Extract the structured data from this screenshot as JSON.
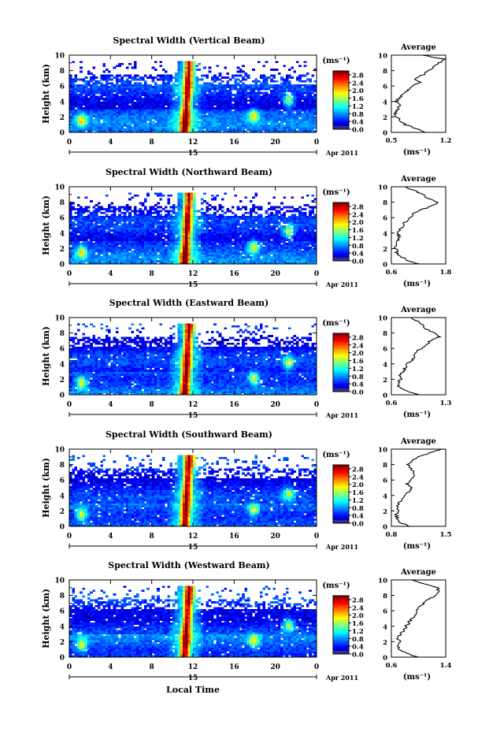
{
  "figure": {
    "xlabel": "Local Time",
    "day_label": "15",
    "month_label": "Apr 2011",
    "colorbar_unit": "(ms⁻¹)",
    "avg_title": "Average",
    "avg_xlabel": "(ms⁻¹)"
  },
  "chart_data": [
    {
      "type": "heatmap",
      "title": "Spectral Width (Vertical Beam)",
      "ylabel": "Height (km)",
      "x_ticks": [
        "0",
        "4",
        "8",
        "12",
        "16",
        "20",
        "0"
      ],
      "y_ticks": [
        "0",
        "2",
        "4",
        "6",
        "8",
        "10"
      ],
      "xlim": [
        0,
        24
      ],
      "ylim": [
        0,
        10
      ],
      "colorbar_ticks": [
        "0.0",
        "0.4",
        "0.8",
        "1.2",
        "1.6",
        "2.0",
        "2.4",
        "2.8"
      ],
      "colorbar_range": [
        0,
        3.0
      ],
      "top_cutoff_km": 9.3,
      "average_profile": {
        "x_ticks": [
          "0.5",
          "1.2"
        ],
        "xlim": [
          0.5,
          1.2
        ],
        "height": [
          0,
          0.5,
          1,
          1.5,
          2,
          2.5,
          3,
          3.5,
          4,
          4.5,
          5,
          5.5,
          6,
          6.5,
          7,
          7.5,
          8,
          8.5,
          9,
          9.5,
          10
        ],
        "value": [
          0.95,
          0.82,
          0.68,
          0.62,
          0.57,
          0.55,
          0.58,
          0.6,
          0.56,
          0.6,
          0.66,
          0.72,
          0.78,
          0.86,
          0.8,
          0.92,
          0.98,
          1.05,
          1.12,
          1.18,
          0.9
        ]
      }
    },
    {
      "type": "heatmap",
      "title": "Spectral Width (Northward Beam)",
      "ylabel": "Height (km)",
      "x_ticks": [
        "0",
        "4",
        "8",
        "12",
        "16",
        "20",
        "0"
      ],
      "y_ticks": [
        "0",
        "2",
        "4",
        "6",
        "8",
        "10"
      ],
      "xlim": [
        0,
        24
      ],
      "ylim": [
        0,
        10
      ],
      "colorbar_ticks": [
        "0.0",
        "0.4",
        "0.8",
        "1.2",
        "1.6",
        "2.0",
        "2.4",
        "2.8"
      ],
      "colorbar_range": [
        0,
        3.0
      ],
      "top_cutoff_km": 9.3,
      "average_profile": {
        "x_ticks": [
          "0.6",
          "1.8"
        ],
        "xlim": [
          0.6,
          1.8
        ],
        "height": [
          0,
          0.5,
          1,
          1.5,
          2,
          2.5,
          3,
          3.5,
          4,
          4.5,
          5,
          5.5,
          6,
          6.5,
          7,
          7.5,
          8,
          8.5,
          9,
          9.5,
          10
        ],
        "value": [
          1.2,
          0.95,
          0.8,
          0.72,
          0.7,
          0.72,
          0.75,
          0.78,
          0.74,
          0.8,
          0.86,
          0.92,
          1.0,
          1.1,
          1.25,
          1.5,
          1.65,
          1.4,
          1.3,
          1.1,
          0.9
        ]
      }
    },
    {
      "type": "heatmap",
      "title": "Spectral Width (Eastward Beam)",
      "ylabel": "Height (km)",
      "x_ticks": [
        "0",
        "4",
        "8",
        "12",
        "16",
        "20",
        "0"
      ],
      "y_ticks": [
        "0",
        "2",
        "4",
        "6",
        "8",
        "10"
      ],
      "xlim": [
        0,
        24
      ],
      "ylim": [
        0,
        10
      ],
      "colorbar_ticks": [
        "0.0",
        "0.4",
        "0.8",
        "1.2",
        "1.6",
        "2.0",
        "2.4",
        "2.8"
      ],
      "colorbar_range": [
        0,
        3.0
      ],
      "top_cutoff_km": 9.3,
      "average_profile": {
        "x_ticks": [
          "0.6",
          "1.3"
        ],
        "xlim": [
          0.6,
          1.3
        ],
        "height": [
          0,
          0.5,
          1,
          1.5,
          2,
          2.5,
          3,
          3.5,
          4,
          4.5,
          5,
          5.5,
          6,
          6.5,
          7,
          7.5,
          8,
          8.5,
          9,
          9.5,
          10
        ],
        "value": [
          0.95,
          0.8,
          0.7,
          0.68,
          0.72,
          0.7,
          0.75,
          0.78,
          0.8,
          0.86,
          0.9,
          0.92,
          0.98,
          1.05,
          1.1,
          1.22,
          1.15,
          1.05,
          1.0,
          0.95,
          0.85
        ]
      }
    },
    {
      "type": "heatmap",
      "title": "Spectral Width (Southward Beam)",
      "ylabel": "Height (km)",
      "x_ticks": [
        "0",
        "4",
        "8",
        "12",
        "16",
        "20",
        "0"
      ],
      "y_ticks": [
        "0",
        "2",
        "4",
        "6",
        "8",
        "10"
      ],
      "xlim": [
        0,
        24
      ],
      "ylim": [
        0,
        10
      ],
      "colorbar_ticks": [
        "0.0",
        "0.4",
        "0.8",
        "1.2",
        "1.6",
        "2.0",
        "2.4",
        "2.8"
      ],
      "colorbar_range": [
        0,
        3.0
      ],
      "top_cutoff_km": 9.3,
      "average_profile": {
        "x_ticks": [
          "0.8",
          "1.5"
        ],
        "xlim": [
          0.8,
          1.5
        ],
        "height": [
          0,
          0.5,
          1,
          1.5,
          2,
          2.5,
          3,
          3.5,
          4,
          4.5,
          5,
          5.5,
          6,
          6.5,
          7,
          7.5,
          8,
          8.5,
          9,
          9.5,
          10
        ],
        "value": [
          1.05,
          0.92,
          0.88,
          0.86,
          0.9,
          0.88,
          0.9,
          0.94,
          0.98,
          1.02,
          1.06,
          1.0,
          1.04,
          1.08,
          1.1,
          1.05,
          1.02,
          1.08,
          1.12,
          1.3,
          1.45
        ]
      }
    },
    {
      "type": "heatmap",
      "title": "Spectral Width (Westward Beam)",
      "ylabel": "Height (km)",
      "x_ticks": [
        "0",
        "4",
        "8",
        "12",
        "16",
        "20",
        "0"
      ],
      "y_ticks": [
        "0",
        "2",
        "4",
        "6",
        "8",
        "10"
      ],
      "xlim": [
        0,
        24
      ],
      "ylim": [
        0,
        10
      ],
      "colorbar_ticks": [
        "0.0",
        "0.4",
        "0.8",
        "1.2",
        "1.6",
        "2.0",
        "2.4",
        "2.8"
      ],
      "colorbar_range": [
        0,
        3.0
      ],
      "top_cutoff_km": 9.3,
      "average_profile": {
        "x_ticks": [
          "0.6",
          "1.4"
        ],
        "xlim": [
          0.6,
          1.4
        ],
        "height": [
          0,
          0.5,
          1,
          1.5,
          2,
          2.5,
          3,
          3.5,
          4,
          4.5,
          5,
          5.5,
          6,
          6.5,
          7,
          7.5,
          8,
          8.5,
          9,
          9.5,
          10
        ],
        "value": [
          1.0,
          0.82,
          0.72,
          0.68,
          0.72,
          0.7,
          0.74,
          0.78,
          0.82,
          0.86,
          0.9,
          0.95,
          0.98,
          1.02,
          1.08,
          1.15,
          1.25,
          1.3,
          1.28,
          1.1,
          0.9
        ]
      }
    }
  ]
}
